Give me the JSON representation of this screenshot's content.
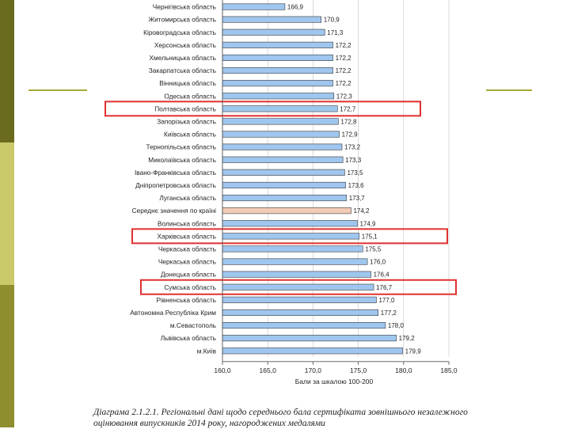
{
  "theme": {
    "sidebar_colors": [
      "#6b6b1f",
      "#c9c96a",
      "#8e8e2e"
    ],
    "deco_line": "#a8a838",
    "bar_color": "#9fc6ee",
    "bar_highlight_color": "#f3cbb6",
    "bar_stroke": "#3a3a3a",
    "frame_color": "#e03030"
  },
  "chart_data": {
    "type": "bar",
    "orientation": "horizontal",
    "categories": [
      "Чернігівська область",
      "Житомирська область",
      "Кіровоградська область",
      "Херсонська область",
      "Хмельницька область",
      "Закарпатська область",
      "Вінницька область",
      "Одеська область",
      "Полтавська область",
      "Запорізька область",
      "Київська область",
      "Тернопільська область",
      "Миколаївська область",
      "Івано-Франківська область",
      "Дніпропетровська область",
      "Луганська область",
      "Середнє значення по країні",
      "Волинська область",
      "Харківська область",
      "Черкаська область",
      "Черкаська область",
      "Донецька область",
      "Сумська область",
      "Рівненська область",
      "Автономна Республіка Крим",
      "м.Севастополь",
      "Львівська область",
      "м.Київ"
    ],
    "values": [
      166.9,
      170.9,
      171.3,
      172.2,
      172.2,
      172.2,
      172.2,
      172.3,
      172.7,
      172.8,
      172.9,
      173.2,
      173.3,
      173.5,
      173.6,
      173.7,
      174.2,
      174.9,
      175.1,
      175.5,
      176.0,
      176.4,
      176.7,
      177.0,
      177.2,
      178.0,
      179.2,
      179.9
    ],
    "value_labels": [
      "166,9",
      "170,9",
      "171,3",
      "172,2",
      "172,2",
      "172,2",
      "172,2",
      "172,3",
      "172,7",
      "172,8",
      "172,9",
      "173,2",
      "173,3",
      "173,5",
      "173,6",
      "173,7",
      "174,2",
      "174,9",
      "175,1",
      "175,5",
      "176,0",
      "176,4",
      "176,7",
      "177,0",
      "177,2",
      "178,0",
      "179,2",
      "179,9"
    ],
    "highlight_index": 16,
    "framed_indices": [
      8,
      18,
      22
    ],
    "xlim": [
      160,
      185
    ],
    "xticks": [
      160,
      165,
      170,
      175,
      180,
      185
    ],
    "xtick_labels": [
      "160,0",
      "165,0",
      "170,0",
      "175,0",
      "180,0",
      "185,0"
    ],
    "xlabel": "Бали за шкалою 100-200",
    "grid": true
  },
  "caption": {
    "label": "Діаграма 2.1.2.1.",
    "text": "Регіональні дані щодо середнього бала сертифіката зовнішнього незалежного оцінювання випускників 2014 року, нагороджених медалями"
  }
}
